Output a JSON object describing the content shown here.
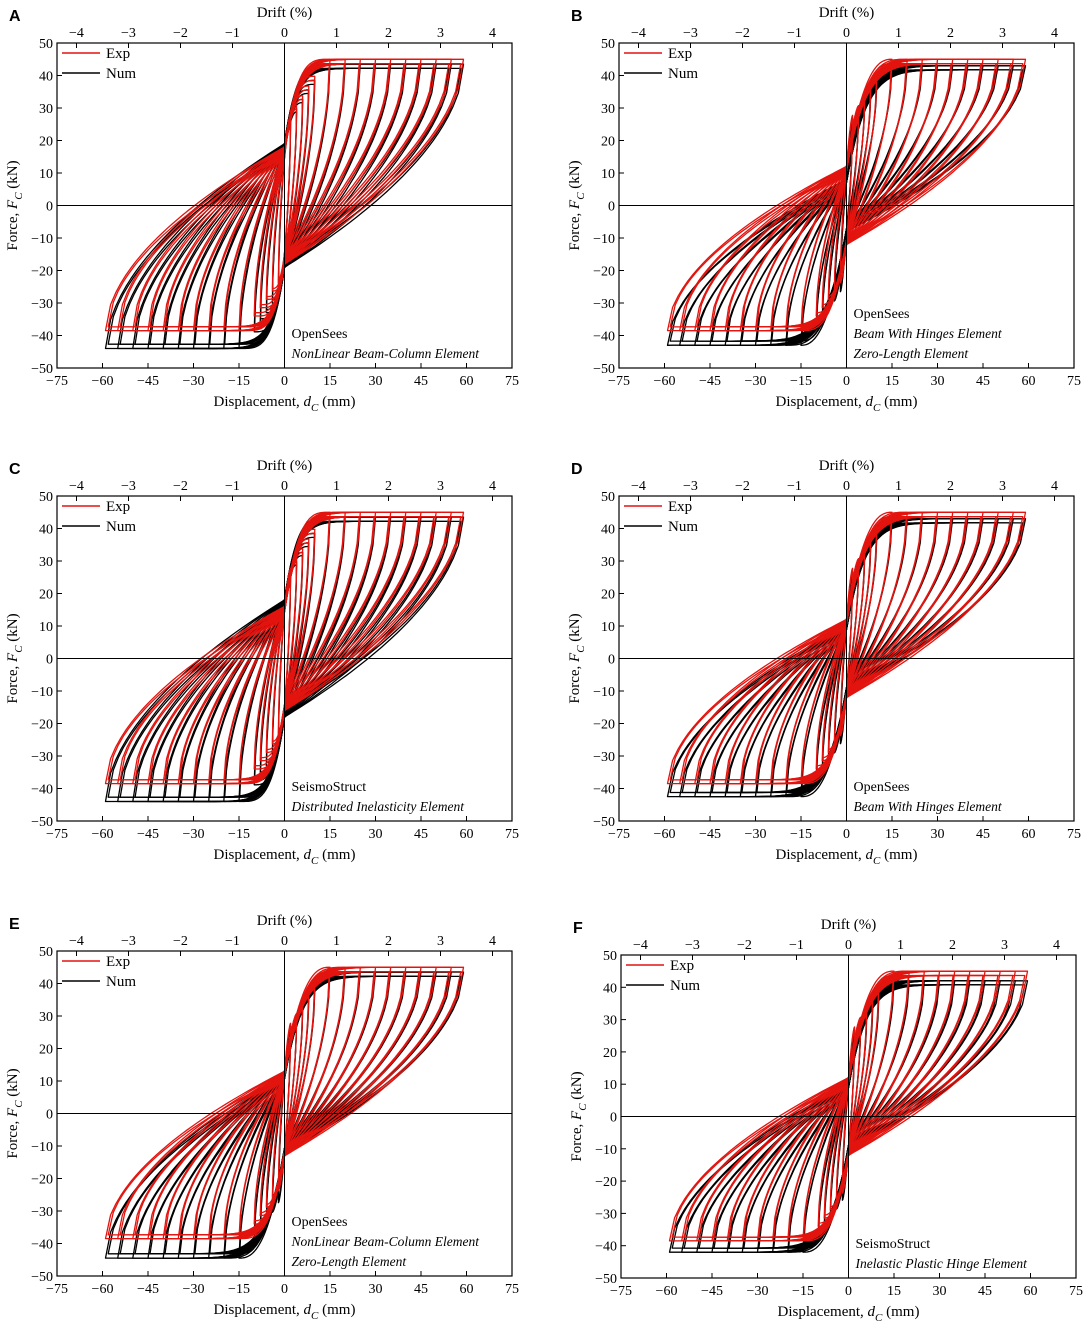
{
  "figure": {
    "series_names": {
      "exp": "Exp",
      "num": "Num"
    },
    "colors": {
      "exp": "#e3140f",
      "num": "#000000"
    },
    "x_label": "Displacement,",
    "x_symbol": "d",
    "x_sub": "C",
    "x_unit": "(mm)",
    "y_label": "Force,",
    "y_symbol": "F",
    "y_sub": "C",
    "y_unit": "(kN)",
    "top_label": "Drift (%)"
  },
  "chart_data": [
    {
      "type": "line",
      "panel": "A",
      "title": "",
      "software": "OpenSees",
      "elements": [
        "NonLinear Beam-Column Element"
      ],
      "xlim": [
        -75,
        75
      ],
      "ylim": [
        -50,
        50
      ],
      "x_ticks": [
        -75,
        -60,
        -45,
        -30,
        -15,
        0,
        15,
        30,
        45,
        60,
        75
      ],
      "y_ticks": [
        -50,
        -40,
        -30,
        -20,
        -10,
        0,
        10,
        20,
        30,
        40,
        50
      ],
      "drift_ticks": [
        -4,
        -3,
        -2,
        -1,
        0,
        1,
        2,
        3,
        4
      ],
      "drift_per_mm": 0.05833,
      "amplitudes_mm": [
        2,
        4,
        6,
        8,
        10,
        15,
        20,
        25,
        30,
        35,
        40,
        45,
        50,
        55,
        59
      ],
      "series": [
        {
          "name": "Exp",
          "peak_force_kN": [
            45,
            -38.5
          ],
          "pinch_intercept_kN": 18,
          "init_stiffness": 6.5
        },
        {
          "name": "Num",
          "peak_force_kN": [
            43.5,
            -44
          ],
          "pinch_intercept_kN": 19,
          "init_stiffness": 6.5
        }
      ]
    },
    {
      "type": "line",
      "panel": "B",
      "title": "",
      "software": "OpenSees",
      "elements": [
        "Beam With Hinges Element",
        "Zero-Length Element"
      ],
      "xlim": [
        -75,
        75
      ],
      "ylim": [
        -50,
        50
      ],
      "x_ticks": [
        -75,
        -60,
        -45,
        -30,
        -15,
        0,
        15,
        30,
        45,
        60,
        75
      ],
      "y_ticks": [
        -50,
        -40,
        -30,
        -20,
        -10,
        0,
        10,
        20,
        30,
        40,
        50
      ],
      "drift_ticks": [
        -4,
        -3,
        -2,
        -1,
        0,
        1,
        2,
        3,
        4
      ],
      "drift_per_mm": 0.05833,
      "amplitudes_mm": [
        2,
        4,
        6,
        8,
        10,
        15,
        20,
        25,
        30,
        35,
        40,
        45,
        50,
        55,
        59
      ],
      "series": [
        {
          "name": "Exp",
          "peak_force_kN": [
            45,
            -38.5
          ],
          "pinch_intercept_kN": 12,
          "init_stiffness": 5.5
        },
        {
          "name": "Num",
          "peak_force_kN": [
            43,
            -43
          ],
          "pinch_intercept_kN": 8,
          "init_stiffness": 5.5
        }
      ]
    },
    {
      "type": "line",
      "panel": "C",
      "title": "",
      "software": "SeismoStruct",
      "elements": [
        "Distributed Inelasticity Element"
      ],
      "xlim": [
        -75,
        75
      ],
      "ylim": [
        -50,
        50
      ],
      "x_ticks": [
        -75,
        -60,
        -45,
        -30,
        -15,
        0,
        15,
        30,
        45,
        60,
        75
      ],
      "y_ticks": [
        -50,
        -40,
        -30,
        -20,
        -10,
        0,
        10,
        20,
        30,
        40,
        50
      ],
      "drift_ticks": [
        -4,
        -3,
        -2,
        -1,
        0,
        1,
        2,
        3,
        4
      ],
      "drift_per_mm": 0.05833,
      "amplitudes_mm": [
        2,
        4,
        6,
        8,
        10,
        15,
        20,
        25,
        30,
        35,
        40,
        45,
        50,
        55,
        59
      ],
      "series": [
        {
          "name": "Exp",
          "peak_force_kN": [
            45,
            -38.5
          ],
          "pinch_intercept_kN": 16,
          "init_stiffness": 6.5
        },
        {
          "name": "Num",
          "peak_force_kN": [
            43.5,
            -44
          ],
          "pinch_intercept_kN": 18,
          "init_stiffness": 6.5
        }
      ]
    },
    {
      "type": "line",
      "panel": "D",
      "title": "",
      "software": "OpenSees",
      "elements": [
        "Beam With Hinges Element"
      ],
      "xlim": [
        -75,
        75
      ],
      "ylim": [
        -50,
        50
      ],
      "x_ticks": [
        -75,
        -60,
        -45,
        -30,
        -15,
        0,
        15,
        30,
        45,
        60,
        75
      ],
      "y_ticks": [
        -50,
        -40,
        -30,
        -20,
        -10,
        0,
        10,
        20,
        30,
        40,
        50
      ],
      "drift_ticks": [
        -4,
        -3,
        -2,
        -1,
        0,
        1,
        2,
        3,
        4
      ],
      "drift_per_mm": 0.05833,
      "amplitudes_mm": [
        2,
        4,
        6,
        8,
        10,
        15,
        20,
        25,
        30,
        35,
        40,
        45,
        50,
        55,
        59
      ],
      "series": [
        {
          "name": "Exp",
          "peak_force_kN": [
            45,
            -38.5
          ],
          "pinch_intercept_kN": 12,
          "init_stiffness": 5.5
        },
        {
          "name": "Num",
          "peak_force_kN": [
            43,
            -42.5
          ],
          "pinch_intercept_kN": 10,
          "init_stiffness": 5.5
        }
      ]
    },
    {
      "type": "line",
      "panel": "E",
      "title": "",
      "software": "OpenSees",
      "elements": [
        "NonLinear Beam-Column Element",
        "Zero-Length Element"
      ],
      "xlim": [
        -75,
        75
      ],
      "ylim": [
        -50,
        50
      ],
      "x_ticks": [
        -75,
        -60,
        -45,
        -30,
        -15,
        0,
        15,
        30,
        45,
        60,
        75
      ],
      "y_ticks": [
        -50,
        -40,
        -30,
        -20,
        -10,
        0,
        10,
        20,
        30,
        40,
        50
      ],
      "drift_ticks": [
        -4,
        -3,
        -2,
        -1,
        0,
        1,
        2,
        3,
        4
      ],
      "drift_per_mm": 0.05833,
      "amplitudes_mm": [
        2,
        4,
        6,
        8,
        10,
        15,
        20,
        25,
        30,
        35,
        40,
        45,
        50,
        55,
        59
      ],
      "series": [
        {
          "name": "Exp",
          "peak_force_kN": [
            45,
            -38.5
          ],
          "pinch_intercept_kN": 13,
          "init_stiffness": 5.5
        },
        {
          "name": "Num",
          "peak_force_kN": [
            43.5,
            -44.5
          ],
          "pinch_intercept_kN": 12,
          "init_stiffness": 5.5
        }
      ]
    },
    {
      "type": "line",
      "panel": "F",
      "title": "",
      "software": "SeismoStruct",
      "elements": [
        "Inelastic Plastic Hinge Element"
      ],
      "xlim": [
        -75,
        75
      ],
      "ylim": [
        -50,
        50
      ],
      "x_ticks": [
        -75,
        -60,
        -45,
        -30,
        -15,
        0,
        15,
        30,
        45,
        60,
        75
      ],
      "y_ticks": [
        -50,
        -40,
        -30,
        -20,
        -10,
        0,
        10,
        20,
        30,
        40,
        50
      ],
      "drift_ticks": [
        -4,
        -3,
        -2,
        -1,
        0,
        1,
        2,
        3,
        4
      ],
      "drift_per_mm": 0.05833,
      "amplitudes_mm": [
        2,
        4,
        6,
        8,
        10,
        15,
        20,
        25,
        30,
        35,
        40,
        45,
        50,
        55,
        59
      ],
      "series": [
        {
          "name": "Exp",
          "peak_force_kN": [
            45,
            -38.5
          ],
          "pinch_intercept_kN": 12,
          "init_stiffness": 5.5
        },
        {
          "name": "Num",
          "peak_force_kN": [
            42,
            -42
          ],
          "pinch_intercept_kN": 10,
          "init_stiffness": 5.5
        }
      ]
    }
  ]
}
